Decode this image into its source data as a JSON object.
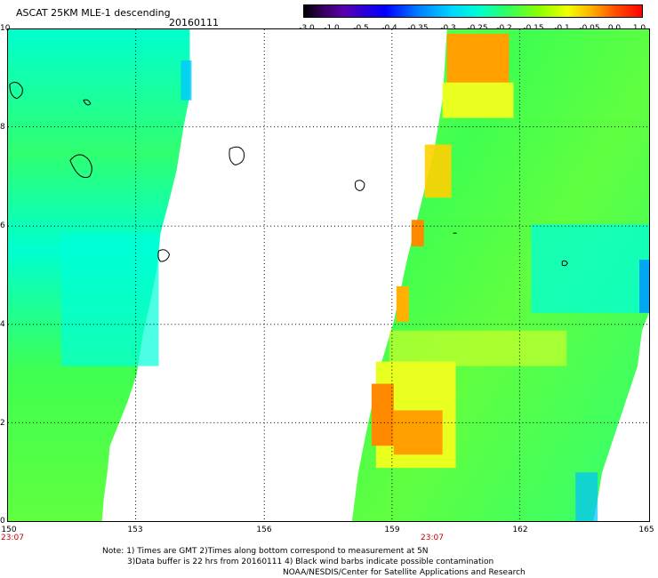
{
  "header": {
    "title": "ASCAT 25KM MLE-1 descending",
    "date": "20160111"
  },
  "colorbar": {
    "tick_labels": [
      "-3.0",
      "-1.0",
      "-0.5",
      "-0.4",
      "-0.35",
      "-0.3",
      "-0.25",
      "-0.2",
      "-0.15",
      "-0.1",
      "-0.05",
      "0.0",
      "1.0"
    ],
    "colors": [
      "#000000",
      "#5a00b0",
      "#0000ff",
      "#00d8ff",
      "#00ffd0",
      "#30ff60",
      "#f0ff00",
      "#ffb000",
      "#ff0000"
    ]
  },
  "map": {
    "lat_labels": [
      "10",
      "8",
      "6",
      "4",
      "2",
      "0"
    ],
    "lon_labels": [
      "150",
      "153",
      "156",
      "159",
      "162",
      "165"
    ],
    "swath_times": [
      "23:07",
      "23:07"
    ],
    "swath_colors": {
      "green": "#40ff50",
      "cyan": "#00ffd0",
      "yellow": "#e8ff20",
      "orange": "#ff9000",
      "outline": "#000000"
    }
  },
  "footer": {
    "note_line1": "Note: 1) Times are GMT 2)Times along bottom correspond to measurement at 5N",
    "note_line2": "3)Data buffer is 22 hrs from 20160111 4) Black wind barbs indicate possible contamination",
    "note_line3": "NOAA/NESDIS/Center for Satellite Applications and Research"
  }
}
